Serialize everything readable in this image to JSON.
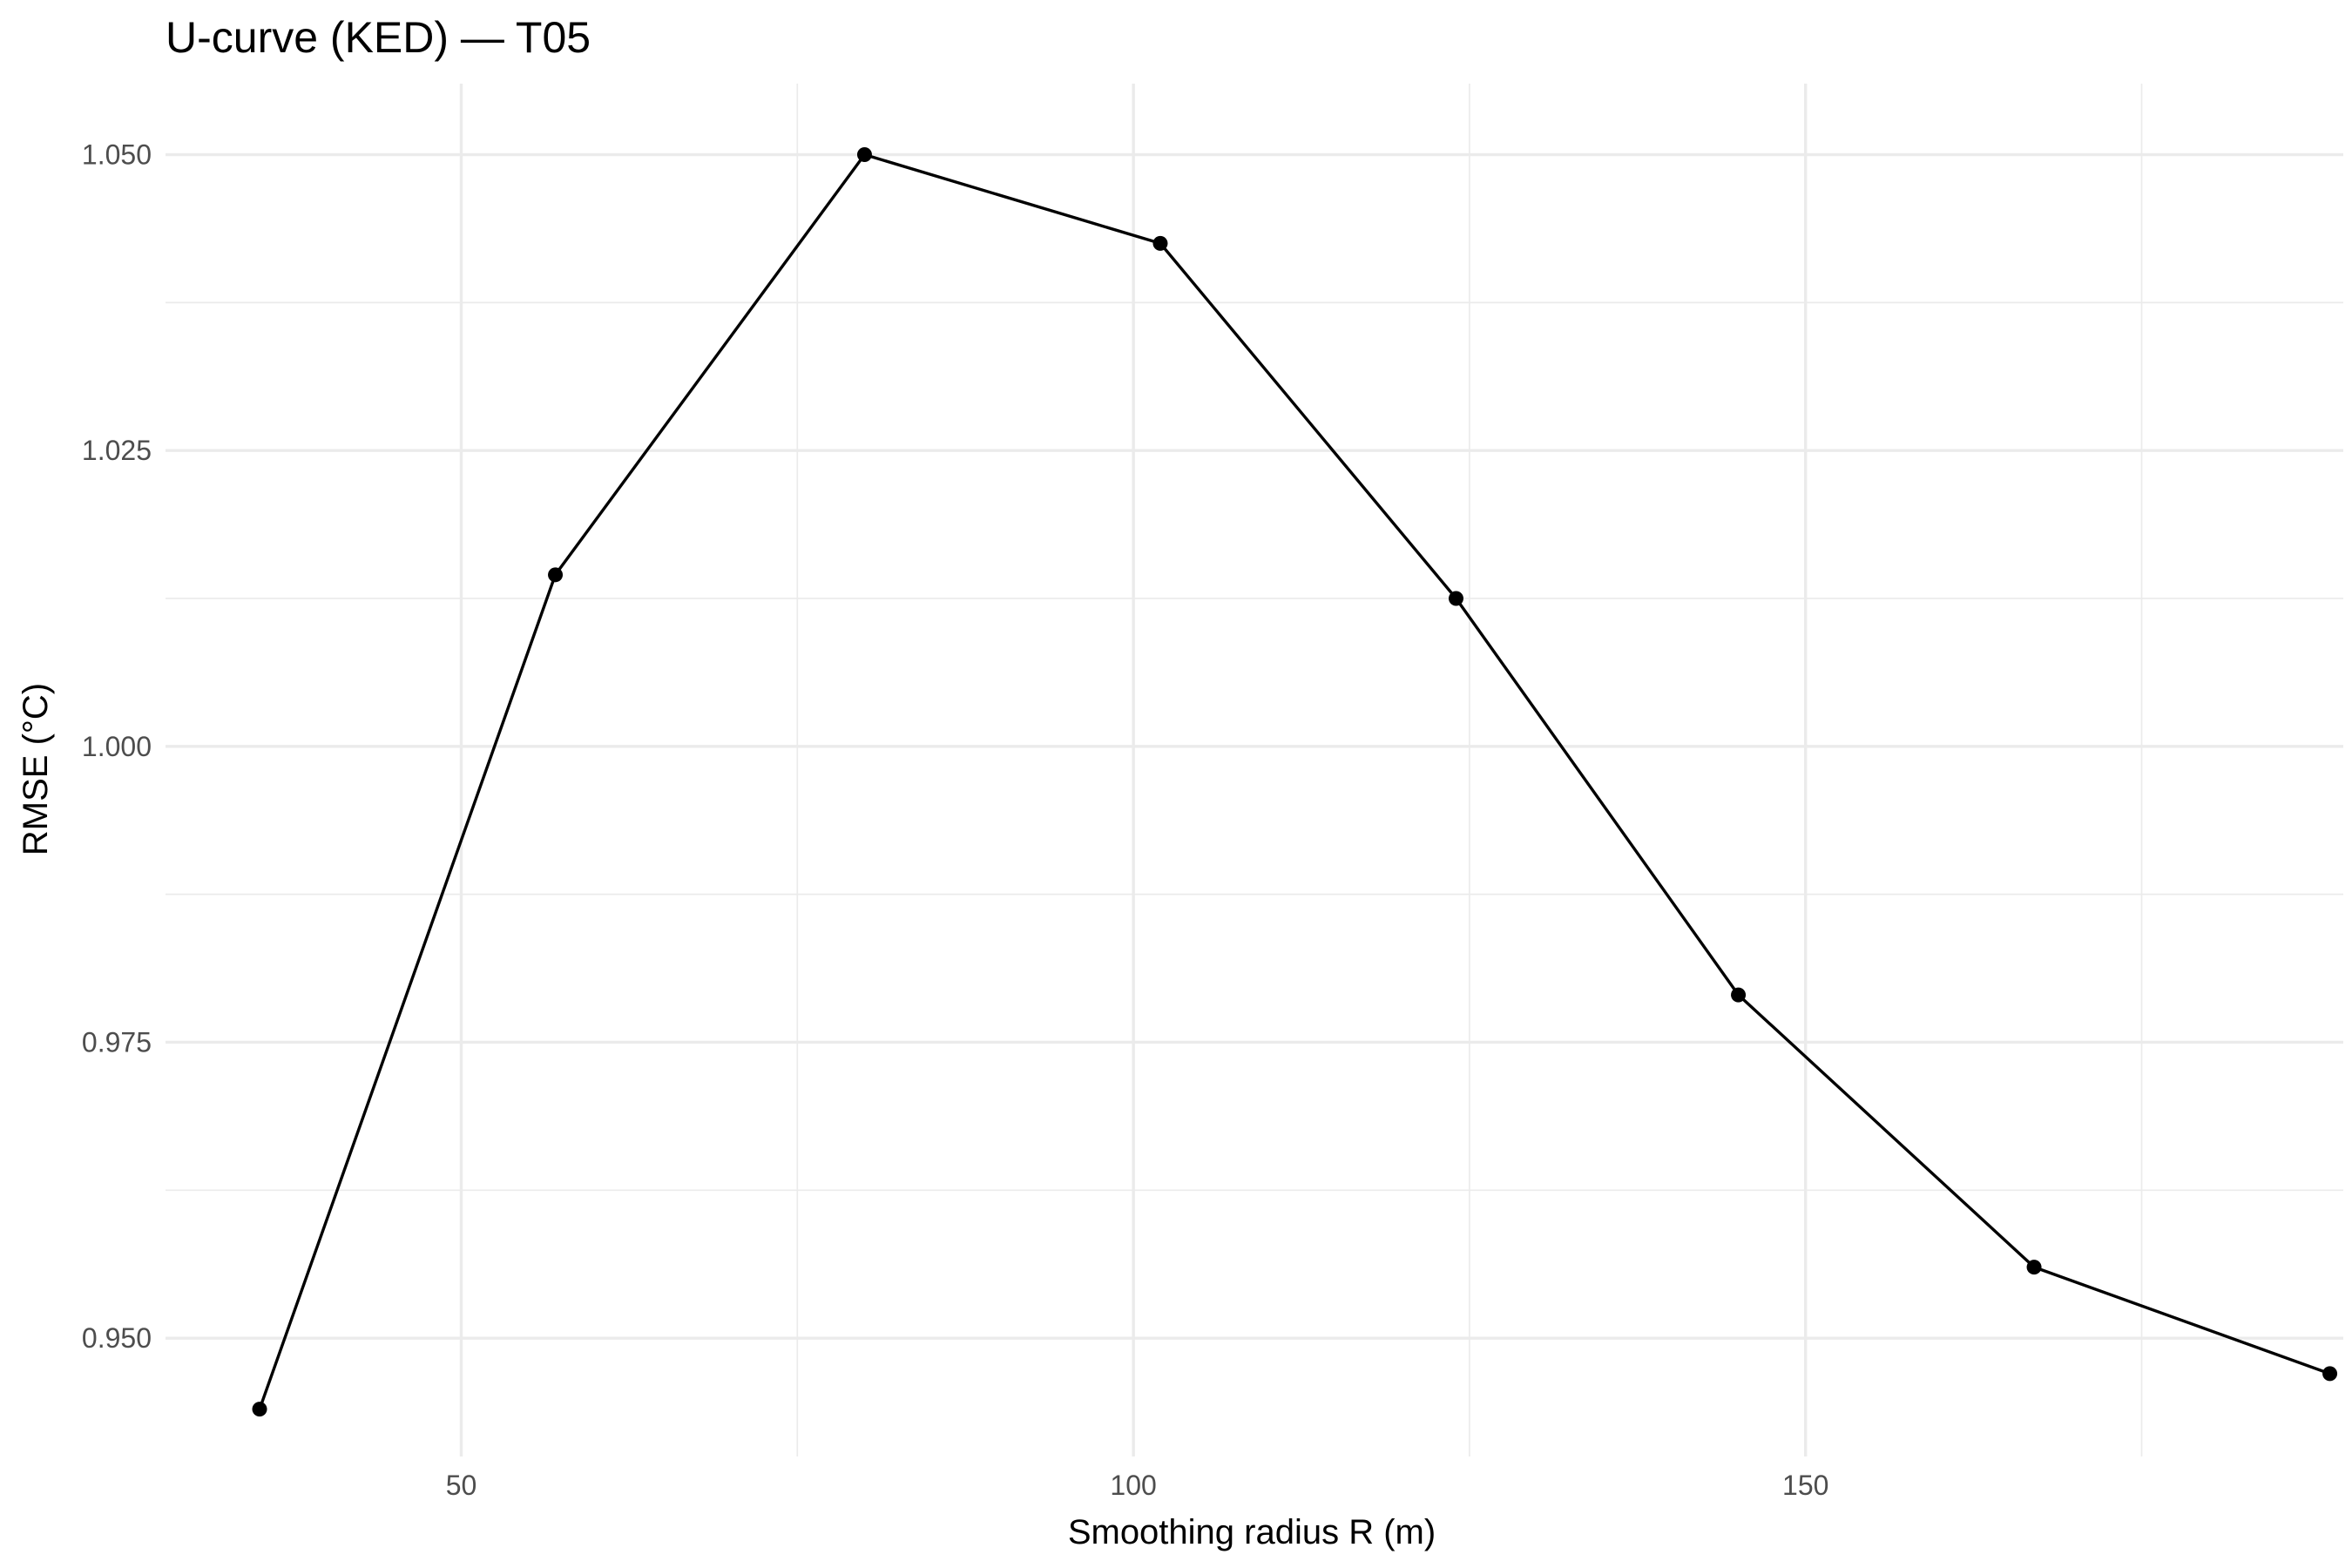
{
  "chart_data": {
    "type": "line",
    "title": "U-curve (KED) — T05",
    "xlabel": "Smoothing radius R (m)",
    "ylabel": "RMSE (°C)",
    "xlim": [
      28,
      190
    ],
    "ylim": [
      0.94,
      1.056
    ],
    "x_ticks": [
      50,
      100,
      150
    ],
    "x_tick_labels": [
      "50",
      "100",
      "150"
    ],
    "x_minor_ticks": [
      75,
      125,
      175
    ],
    "y_ticks": [
      0.95,
      0.975,
      1.0,
      1.025,
      1.05
    ],
    "y_tick_labels": [
      "0.950",
      "0.975",
      "1.000",
      "1.025",
      "1.050"
    ],
    "y_minor_ticks": [
      0.9625,
      0.9875,
      1.0125,
      1.0375
    ],
    "grid": true,
    "legend": "none",
    "series": [
      {
        "color": "#000000",
        "x": [
          35,
          57,
          80,
          102,
          124,
          145,
          167,
          189
        ],
        "y": [
          0.944,
          1.0145,
          1.05,
          1.0425,
          1.0125,
          0.979,
          0.956,
          0.947
        ]
      }
    ]
  }
}
